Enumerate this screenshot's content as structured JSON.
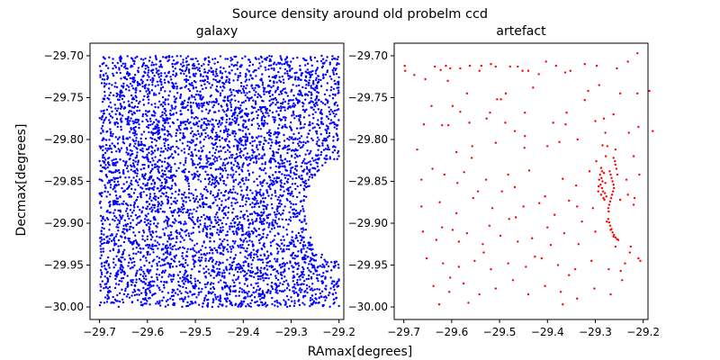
{
  "chart_data": {
    "type": "scatter",
    "title": "Source density around old probelm ccd",
    "xlabel": "RAmax[degrees]",
    "ylabel": "Decmax[degrees]",
    "panels": [
      {
        "title": "galaxy",
        "color": "#0000ff",
        "xlim": [
          -29.72,
          -29.19
        ],
        "ylim": [
          -30.015,
          -29.685
        ],
        "xticks": [
          -29.7,
          -29.6,
          -29.5,
          -29.4,
          -29.3,
          -29.2
        ],
        "yticks": [
          -29.7,
          -29.75,
          -29.8,
          -29.85,
          -29.9,
          -29.95,
          -30.0
        ],
        "xtick_labels": [
          "−29.7",
          "−29.6",
          "−29.5",
          "−29.4",
          "−29.3",
          "−29.2"
        ],
        "ytick_labels": [
          "−29.70",
          "−29.75",
          "−29.80",
          "−29.85",
          "−29.90",
          "−29.95",
          "−30.00"
        ],
        "region": {
          "ra_min": -29.7,
          "dec_max": -29.7,
          "dec_min": -30.0,
          "right_edge_top": -29.2,
          "right_edge_bottom": -29.2,
          "cutout_depth_ra": -29.27,
          "cutout_dec_range": [
            -29.825,
            -29.945
          ]
        },
        "approx_point_count": 5000
      },
      {
        "title": "artefact",
        "color": "#ff0000",
        "xlim": [
          -29.72,
          -29.19
        ],
        "ylim": [
          -30.015,
          -29.685
        ],
        "xticks": [
          -29.7,
          -29.6,
          -29.5,
          -29.4,
          -29.3,
          -29.2
        ],
        "yticks": [
          -29.7,
          -29.75,
          -29.8,
          -29.85,
          -29.9,
          -29.95,
          -30.0
        ],
        "xtick_labels": [
          "−29.7",
          "−29.6",
          "−29.5",
          "−29.4",
          "−29.3",
          "−29.2"
        ],
        "ytick_labels": [
          "−29.70",
          "−29.75",
          "−29.80",
          "−29.85",
          "−29.90",
          "−29.95",
          "−30.00"
        ],
        "points": [
          [
            -29.698,
            -29.712
          ],
          [
            -29.697,
            -29.718
          ],
          [
            -29.678,
            -29.723
          ],
          [
            -29.655,
            -29.728
          ],
          [
            -29.635,
            -29.713
          ],
          [
            -29.623,
            -29.717
          ],
          [
            -29.612,
            -29.712
          ],
          [
            -29.603,
            -29.715
          ],
          [
            -29.582,
            -29.715
          ],
          [
            -29.562,
            -29.712
          ],
          [
            -29.538,
            -29.712
          ],
          [
            -29.518,
            -29.71
          ],
          [
            -29.508,
            -29.713
          ],
          [
            -29.478,
            -29.713
          ],
          [
            -29.462,
            -29.713
          ],
          [
            -29.44,
            -29.718
          ],
          [
            -29.403,
            -29.707
          ],
          [
            -29.382,
            -29.712
          ],
          [
            -29.352,
            -29.718
          ],
          [
            -29.322,
            -29.71
          ],
          [
            -29.297,
            -29.712
          ],
          [
            -29.255,
            -29.715
          ],
          [
            -29.232,
            -29.707
          ],
          [
            -29.212,
            -29.697
          ],
          [
            -29.608,
            -29.73
          ],
          [
            -29.568,
            -29.745
          ],
          [
            -29.542,
            -29.718
          ],
          [
            -29.505,
            -29.752
          ],
          [
            -29.487,
            -29.745
          ],
          [
            -29.452,
            -29.718
          ],
          [
            -29.43,
            -29.738
          ],
          [
            -29.418,
            -29.722
          ],
          [
            -29.363,
            -29.72
          ],
          [
            -29.315,
            -29.742
          ],
          [
            -29.292,
            -29.735
          ],
          [
            -29.248,
            -29.745
          ],
          [
            -29.212,
            -29.745
          ],
          [
            -29.187,
            -29.742
          ],
          [
            -29.607,
            -29.783
          ],
          [
            -29.598,
            -29.76
          ],
          [
            -29.582,
            -29.767
          ],
          [
            -29.563,
            -29.78
          ],
          [
            -29.52,
            -29.768
          ],
          [
            -29.497,
            -29.752
          ],
          [
            -29.468,
            -29.79
          ],
          [
            -29.447,
            -29.768
          ],
          [
            -29.388,
            -29.78
          ],
          [
            -29.36,
            -29.768
          ],
          [
            -29.322,
            -29.753
          ],
          [
            -29.3,
            -29.778
          ],
          [
            -29.262,
            -29.77
          ],
          [
            -29.23,
            -29.792
          ],
          [
            -29.21,
            -29.785
          ],
          [
            -29.18,
            -29.79
          ],
          [
            -29.62,
            -29.783
          ],
          [
            -29.59,
            -29.815
          ],
          [
            -29.557,
            -29.808
          ],
          [
            -29.527,
            -29.775
          ],
          [
            -29.488,
            -29.78
          ],
          [
            -29.448,
            -29.81
          ],
          [
            -29.4,
            -29.808
          ],
          [
            -29.375,
            -29.803
          ],
          [
            -29.337,
            -29.8
          ],
          [
            -29.285,
            -29.807
          ],
          [
            -29.258,
            -29.812
          ],
          [
            -29.22,
            -29.82
          ],
          [
            -29.663,
            -29.848
          ],
          [
            -29.64,
            -29.835
          ],
          [
            -29.615,
            -29.842
          ],
          [
            -29.588,
            -29.852
          ],
          [
            -29.558,
            -29.822
          ],
          [
            -29.528,
            -29.848
          ],
          [
            -29.495,
            -29.862
          ],
          [
            -29.468,
            -29.857
          ],
          [
            -29.438,
            -29.837
          ],
          [
            -29.405,
            -29.868
          ],
          [
            -29.368,
            -29.847
          ],
          [
            -29.34,
            -29.855
          ],
          [
            -29.312,
            -29.838
          ],
          [
            -29.235,
            -29.848
          ],
          [
            -29.208,
            -29.842
          ],
          [
            -29.663,
            -29.88
          ],
          [
            -29.625,
            -29.875
          ],
          [
            -29.59,
            -29.888
          ],
          [
            -29.555,
            -29.87
          ],
          [
            -29.515,
            -29.882
          ],
          [
            -29.48,
            -29.895
          ],
          [
            -29.45,
            -29.88
          ],
          [
            -29.417,
            -29.876
          ],
          [
            -29.385,
            -29.89
          ],
          [
            -29.355,
            -29.873
          ],
          [
            -29.328,
            -29.898
          ],
          [
            -29.305,
            -29.882
          ],
          [
            -29.22,
            -29.878
          ],
          [
            -29.66,
            -29.91
          ],
          [
            -29.632,
            -29.92
          ],
          [
            -29.598,
            -29.908
          ],
          [
            -29.568,
            -29.912
          ],
          [
            -29.535,
            -29.925
          ],
          [
            -29.498,
            -29.915
          ],
          [
            -29.462,
            -29.922
          ],
          [
            -29.432,
            -29.918
          ],
          [
            -29.4,
            -29.905
          ],
          [
            -29.365,
            -29.912
          ],
          [
            -29.335,
            -29.925
          ],
          [
            -29.3,
            -29.91
          ],
          [
            -29.258,
            -29.928
          ],
          [
            -29.228,
            -29.935
          ],
          [
            -29.652,
            -29.942
          ],
          [
            -29.618,
            -29.948
          ],
          [
            -29.585,
            -29.952
          ],
          [
            -29.552,
            -29.945
          ],
          [
            -29.518,
            -29.955
          ],
          [
            -29.482,
            -29.948
          ],
          [
            -29.445,
            -29.952
          ],
          [
            -29.412,
            -29.942
          ],
          [
            -29.378,
            -29.95
          ],
          [
            -29.342,
            -29.955
          ],
          [
            -29.308,
            -29.945
          ],
          [
            -29.272,
            -29.955
          ],
          [
            -29.238,
            -29.948
          ],
          [
            -29.206,
            -29.945
          ],
          [
            -29.638,
            -29.975
          ],
          [
            -29.605,
            -29.982
          ],
          [
            -29.575,
            -29.972
          ],
          [
            -29.542,
            -29.985
          ],
          [
            -29.508,
            -29.978
          ],
          [
            -29.472,
            -29.968
          ],
          [
            -29.44,
            -29.985
          ],
          [
            -29.405,
            -29.975
          ],
          [
            -29.372,
            -29.982
          ],
          [
            -29.338,
            -29.99
          ],
          [
            -29.302,
            -29.978
          ],
          [
            -29.268,
            -29.985
          ],
          [
            -29.626,
            -29.997
          ],
          [
            -29.565,
            -29.995
          ],
          [
            -29.368,
            -29.997
          ],
          [
            -29.482,
            -29.842
          ],
          [
            -29.545,
            -29.862
          ],
          [
            -29.585,
            -29.922
          ],
          [
            -29.62,
            -29.905
          ],
          [
            -29.672,
            -29.812
          ],
          [
            -29.642,
            -29.76
          ],
          [
            -29.658,
            -29.782
          ],
          [
            -29.508,
            -29.804
          ],
          [
            -29.362,
            -29.782
          ],
          [
            -29.338,
            -29.88
          ],
          [
            -29.426,
            -29.94
          ],
          [
            -29.466,
            -29.893
          ],
          [
            -29.533,
            -29.935
          ],
          [
            -29.574,
            -29.839
          ],
          [
            -29.393,
            -29.926
          ],
          [
            -29.447,
            -29.796
          ],
          [
            -29.521,
            -29.903
          ],
          [
            -29.603,
            -29.965
          ],
          [
            -29.355,
            -29.962
          ],
          [
            -29.288,
            -29.834
          ],
          [
            -29.286,
            -29.838
          ],
          [
            -29.29,
            -29.842
          ],
          [
            -29.287,
            -29.846
          ],
          [
            -29.285,
            -29.85
          ],
          [
            -29.289,
            -29.854
          ],
          [
            -29.286,
            -29.858
          ],
          [
            -29.284,
            -29.862
          ],
          [
            -29.288,
            -29.866
          ],
          [
            -29.283,
            -29.87
          ],
          [
            -29.281,
            -29.872
          ],
          [
            -29.292,
            -29.848
          ],
          [
            -29.293,
            -29.856
          ],
          [
            -29.282,
            -29.84
          ],
          [
            -29.279,
            -29.852
          ],
          [
            -29.28,
            -29.864
          ],
          [
            -29.294,
            -29.862
          ],
          [
            -29.277,
            -29.868
          ],
          [
            -29.27,
            -29.838
          ],
          [
            -29.268,
            -29.842
          ],
          [
            -29.266,
            -29.846
          ],
          [
            -29.264,
            -29.85
          ],
          [
            -29.262,
            -29.854
          ],
          [
            -29.261,
            -29.858
          ],
          [
            -29.263,
            -29.862
          ],
          [
            -29.265,
            -29.866
          ],
          [
            -29.267,
            -29.87
          ],
          [
            -29.269,
            -29.874
          ],
          [
            -29.271,
            -29.878
          ],
          [
            -29.273,
            -29.882
          ],
          [
            -29.272,
            -29.886
          ],
          [
            -29.258,
            -29.83
          ],
          [
            -29.256,
            -29.835
          ],
          [
            -29.254,
            -29.842
          ],
          [
            -29.259,
            -29.826
          ],
          [
            -29.262,
            -29.822
          ],
          [
            -29.273,
            -29.895
          ],
          [
            -29.271,
            -29.899
          ],
          [
            -29.269,
            -29.903
          ],
          [
            -29.266,
            -29.907
          ],
          [
            -29.264,
            -29.911
          ],
          [
            -29.261,
            -29.914
          ],
          [
            -29.258,
            -29.917
          ],
          [
            -29.255,
            -29.919
          ],
          [
            -29.252,
            -29.92
          ],
          [
            -29.276,
            -29.898
          ],
          [
            -29.268,
            -29.908
          ],
          [
            -29.262,
            -29.916
          ],
          [
            -29.282,
            -29.775
          ],
          [
            -29.279,
            -29.792
          ],
          [
            -29.275,
            -29.808
          ],
          [
            -29.298,
            -29.826
          ],
          [
            -29.278,
            -29.82
          ],
          [
            -29.248,
            -29.872
          ],
          [
            -29.232,
            -29.866
          ],
          [
            -29.218,
            -29.87
          ],
          [
            -29.247,
            -29.957
          ],
          [
            -29.244,
            -29.968
          ],
          [
            -29.226,
            -29.928
          ],
          [
            -29.21,
            -29.942
          ]
        ]
      }
    ]
  }
}
